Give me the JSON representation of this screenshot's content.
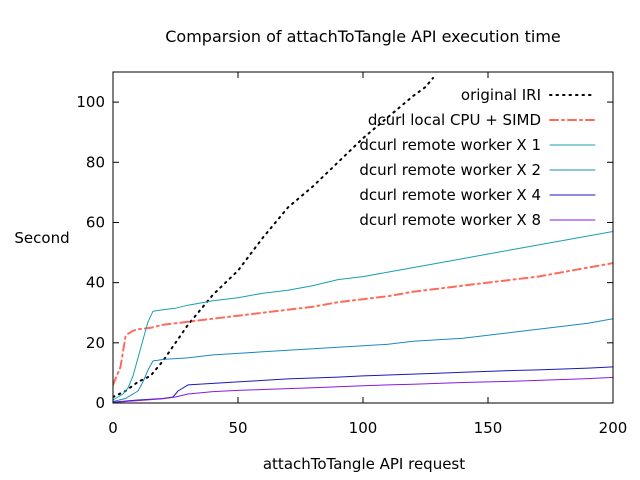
{
  "chart_data": {
    "type": "line",
    "title": "Comparsion of attachToTangle API execution time",
    "xlabel": "attachToTangle API request",
    "ylabel": "Second",
    "xlim": [
      0,
      200
    ],
    "ylim": [
      0,
      110
    ],
    "xticks": [
      0,
      50,
      100,
      150,
      200
    ],
    "yticks": [
      0,
      20,
      40,
      60,
      80,
      100
    ],
    "grid": false,
    "legend_position": "top-right",
    "series": [
      {
        "name": "original IRI",
        "color": "#000000",
        "dash": "dotted",
        "x": [
          0,
          5,
          10,
          15,
          20,
          25,
          30,
          35,
          40,
          50,
          60,
          70,
          80,
          90,
          100,
          110,
          120,
          125,
          128
        ],
        "y": [
          2,
          4,
          7,
          9,
          14,
          20,
          26,
          31,
          36,
          44,
          55,
          65,
          72,
          80,
          88,
          95,
          102,
          105,
          108
        ]
      },
      {
        "name": "dcurl local CPU + SIMD",
        "color": "#ff6a5a",
        "dash": "dashdot",
        "x": [
          0,
          1,
          2,
          3,
          4,
          5,
          6,
          8,
          10,
          15,
          20,
          30,
          40,
          50,
          60,
          70,
          80,
          90,
          100,
          110,
          120,
          130,
          140,
          150,
          160,
          170,
          180,
          190,
          200
        ],
        "y": [
          6,
          8,
          10,
          12,
          17,
          22,
          23,
          24,
          24.5,
          25,
          26,
          27,
          28,
          29,
          30,
          31,
          32,
          33.5,
          34.5,
          35.5,
          37,
          38,
          39,
          40,
          41,
          42,
          43.5,
          45,
          46.5
        ]
      },
      {
        "name": "dcurl remote worker X 1",
        "color": "#1a9faf",
        "dash": "solid",
        "x": [
          0,
          2,
          4,
          6,
          8,
          10,
          12,
          14,
          16,
          20,
          25,
          30,
          40,
          50,
          60,
          70,
          80,
          90,
          100,
          110,
          120,
          130,
          140,
          150,
          160,
          170,
          180,
          190,
          200
        ],
        "y": [
          1,
          2,
          3,
          5,
          9,
          15,
          21,
          27,
          30.5,
          31,
          31.5,
          32.5,
          34,
          35,
          36.5,
          37.5,
          39,
          41,
          42,
          43.5,
          45,
          46.5,
          48,
          49.5,
          51,
          52.5,
          54,
          55.5,
          57
        ]
      },
      {
        "name": "dcurl remote worker X 2",
        "color": "#1a8ac0",
        "dash": "solid",
        "x": [
          0,
          5,
          10,
          12,
          14,
          16,
          18,
          20,
          30,
          40,
          50,
          60,
          70,
          80,
          90,
          100,
          110,
          120,
          130,
          140,
          150,
          160,
          170,
          180,
          190,
          200
        ],
        "y": [
          0.5,
          1.5,
          4,
          7,
          11,
          14,
          14.2,
          14.5,
          15,
          16,
          16.5,
          17,
          17.5,
          18,
          18.5,
          19,
          19.5,
          20.5,
          21,
          21.5,
          22.5,
          23.5,
          24.5,
          25.5,
          26.5,
          28
        ]
      },
      {
        "name": "dcurl remote worker X 4",
        "color": "#1a1ab8",
        "dash": "solid",
        "x": [
          0,
          10,
          20,
          24,
          26,
          30,
          40,
          50,
          60,
          70,
          80,
          90,
          100,
          110,
          120,
          130,
          140,
          150,
          160,
          170,
          180,
          190,
          200
        ],
        "y": [
          0.3,
          1,
          1.5,
          2,
          4,
          6,
          6.5,
          7,
          7.5,
          8,
          8.3,
          8.6,
          9,
          9.3,
          9.6,
          9.9,
          10.2,
          10.5,
          10.8,
          11,
          11.3,
          11.6,
          12
        ]
      },
      {
        "name": "dcurl remote worker X 8",
        "color": "#8a1ae0",
        "dash": "solid",
        "x": [
          0,
          10,
          20,
          25,
          30,
          40,
          50,
          60,
          70,
          80,
          90,
          100,
          110,
          120,
          130,
          140,
          150,
          160,
          170,
          180,
          190,
          200
        ],
        "y": [
          0.2,
          0.8,
          1.4,
          2,
          3,
          3.8,
          4.2,
          4.5,
          4.8,
          5.1,
          5.4,
          5.7,
          6,
          6.2,
          6.5,
          6.8,
          7,
          7.2,
          7.5,
          7.8,
          8.1,
          8.5
        ]
      }
    ]
  }
}
